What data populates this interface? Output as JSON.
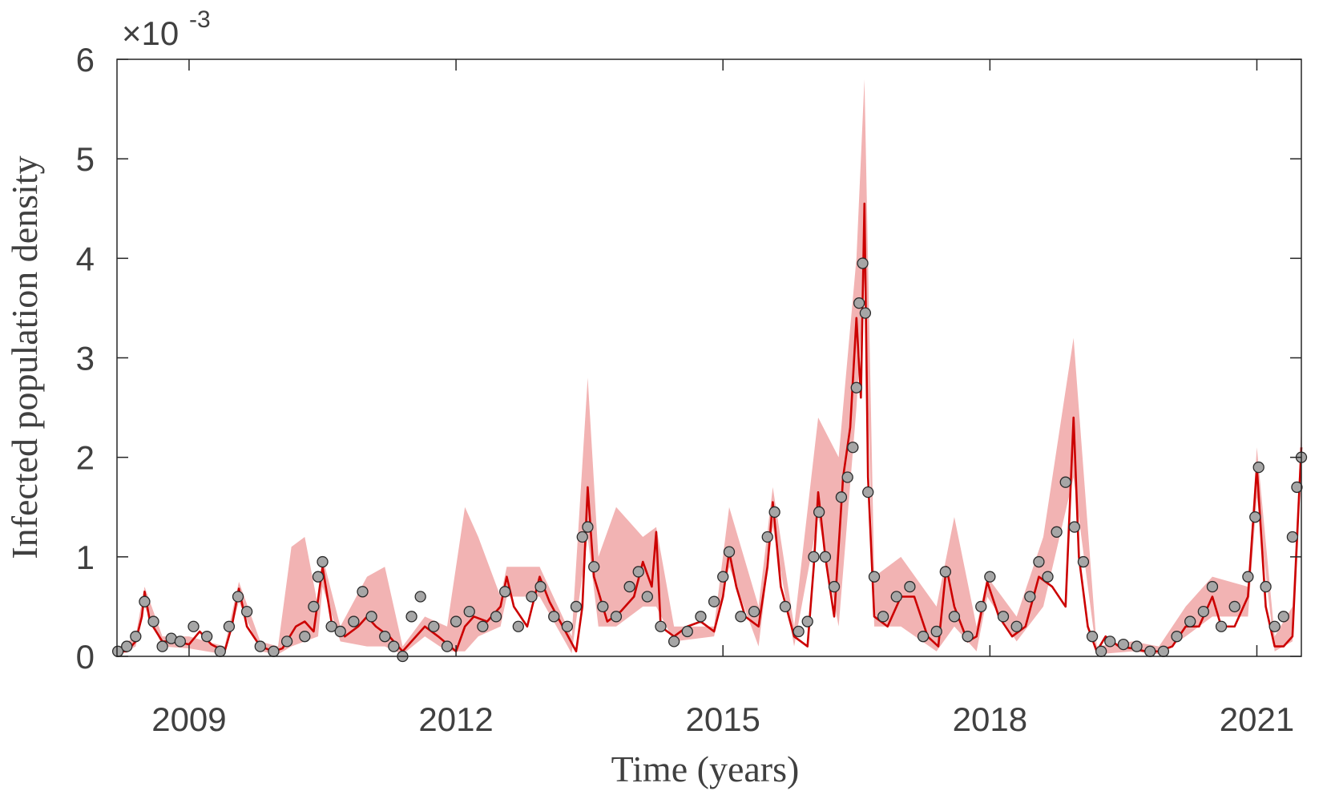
{
  "chart_data": {
    "type": "line",
    "xlabel": "Time (years)",
    "ylabel": "Infected population density",
    "y_multiplier": {
      "base": "×10",
      "exponent": "-3"
    },
    "xlim": [
      2008.19,
      2021.5
    ],
    "xticks": [
      2009,
      2012,
      2015,
      2018,
      2021
    ],
    "ylim": [
      0,
      6
    ],
    "yticks": [
      0,
      1,
      2,
      3,
      4,
      5,
      6
    ],
    "band": {
      "color": "#f2b3b3",
      "x": [
        2008.19,
        2008.4,
        2008.5,
        2008.7,
        2009.0,
        2009.4,
        2009.56,
        2009.8,
        2010.0,
        2010.15,
        2010.3,
        2010.45,
        2010.5,
        2010.7,
        2011.0,
        2011.2,
        2011.4,
        2011.65,
        2011.9,
        2012.1,
        2012.25,
        2012.5,
        2012.57,
        2012.94,
        2013.3,
        2013.48,
        2013.6,
        2013.8,
        2014.1,
        2014.25,
        2014.45,
        2014.9,
        2015.07,
        2015.4,
        2015.56,
        2015.8,
        2016.07,
        2016.3,
        2016.5,
        2016.59,
        2016.7,
        2017.0,
        2017.4,
        2017.6,
        2017.85,
        2017.97,
        2018.3,
        2018.6,
        2018.94,
        2019.2,
        2019.6,
        2019.9,
        2020.2,
        2020.5,
        2020.9,
        2021.0,
        2021.2,
        2021.4,
        2021.5
      ],
      "lower": [
        0.0,
        0.1,
        0.5,
        0.1,
        0.08,
        0.02,
        0.55,
        0.05,
        0.02,
        0.1,
        0.15,
        0.2,
        0.7,
        0.15,
        0.1,
        0.1,
        0.02,
        0.2,
        0.05,
        0.05,
        0.2,
        0.3,
        0.6,
        0.6,
        0.03,
        1.2,
        0.3,
        0.3,
        0.5,
        0.5,
        0.15,
        0.2,
        0.9,
        0.1,
        1.3,
        0.1,
        1.4,
        0.3,
        2.5,
        3.8,
        0.3,
        0.3,
        0.05,
        0.3,
        0.05,
        0.6,
        0.15,
        0.5,
        1.8,
        0.02,
        0.05,
        0.02,
        0.2,
        0.4,
        0.4,
        1.6,
        0.05,
        0.15,
        1.9
      ],
      "upper": [
        0.08,
        0.2,
        0.7,
        0.2,
        0.2,
        0.1,
        0.75,
        0.15,
        0.1,
        1.1,
        1.2,
        0.5,
        1.0,
        0.3,
        0.8,
        0.9,
        0.1,
        0.4,
        0.3,
        1.5,
        1.2,
        0.6,
        0.9,
        0.9,
        0.2,
        2.8,
        1.0,
        1.5,
        1.2,
        1.3,
        0.3,
        0.3,
        1.5,
        0.5,
        1.7,
        0.3,
        2.4,
        2.0,
        4.0,
        5.8,
        0.8,
        1.0,
        0.5,
        1.4,
        0.3,
        0.8,
        0.4,
        1.2,
        3.2,
        0.1,
        0.15,
        0.1,
        0.5,
        0.8,
        0.7,
        2.1,
        0.2,
        0.5,
        2.3
      ]
    },
    "model": {
      "color": "#cc0000",
      "x": [
        2008.19,
        2008.3,
        2008.4,
        2008.47,
        2008.5,
        2008.56,
        2008.7,
        2008.85,
        2009.0,
        2009.12,
        2009.25,
        2009.4,
        2009.48,
        2009.56,
        2009.65,
        2009.8,
        2009.95,
        2010.05,
        2010.2,
        2010.3,
        2010.4,
        2010.5,
        2010.6,
        2010.75,
        2010.9,
        2011.0,
        2011.1,
        2011.25,
        2011.4,
        2011.55,
        2011.65,
        2011.8,
        2012.0,
        2012.1,
        2012.2,
        2012.35,
        2012.5,
        2012.57,
        2012.65,
        2012.8,
        2012.94,
        2013.05,
        2013.2,
        2013.35,
        2013.42,
        2013.48,
        2013.55,
        2013.7,
        2013.85,
        2014.0,
        2014.1,
        2014.2,
        2014.25,
        2014.3,
        2014.45,
        2014.6,
        2014.75,
        2014.9,
        2015.0,
        2015.07,
        2015.15,
        2015.25,
        2015.4,
        2015.5,
        2015.56,
        2015.65,
        2015.8,
        2015.95,
        2016.02,
        2016.07,
        2016.15,
        2016.25,
        2016.35,
        2016.43,
        2016.5,
        2016.55,
        2016.59,
        2016.63,
        2016.7,
        2016.85,
        2017.0,
        2017.15,
        2017.3,
        2017.42,
        2017.51,
        2017.6,
        2017.75,
        2017.85,
        2017.97,
        2018.1,
        2018.25,
        2018.4,
        2018.55,
        2018.7,
        2018.85,
        2018.94,
        2019.0,
        2019.1,
        2019.2,
        2019.3,
        2019.45,
        2019.6,
        2019.75,
        2019.9,
        2020.05,
        2020.2,
        2020.35,
        2020.5,
        2020.6,
        2020.75,
        2020.9,
        2021.0,
        2021.1,
        2021.2,
        2021.3,
        2021.4,
        2021.5
      ],
      "values": [
        0.05,
        0.05,
        0.15,
        0.4,
        0.65,
        0.35,
        0.15,
        0.15,
        0.12,
        0.25,
        0.12,
        0.05,
        0.3,
        0.68,
        0.3,
        0.1,
        0.05,
        0.08,
        0.3,
        0.35,
        0.25,
        0.9,
        0.35,
        0.2,
        0.3,
        0.4,
        0.3,
        0.2,
        0.05,
        0.2,
        0.3,
        0.2,
        0.05,
        0.3,
        0.4,
        0.35,
        0.5,
        0.8,
        0.5,
        0.3,
        0.8,
        0.55,
        0.3,
        0.05,
        0.5,
        1.7,
        0.8,
        0.35,
        0.45,
        0.6,
        0.95,
        0.7,
        1.25,
        0.3,
        0.2,
        0.3,
        0.35,
        0.25,
        0.6,
        1.05,
        0.7,
        0.4,
        0.3,
        0.9,
        1.55,
        0.7,
        0.2,
        0.1,
        0.9,
        1.65,
        1.0,
        0.4,
        1.8,
        2.3,
        3.4,
        2.6,
        4.55,
        1.8,
        0.4,
        0.3,
        0.6,
        0.6,
        0.2,
        0.1,
        0.9,
        0.5,
        0.15,
        0.2,
        0.75,
        0.4,
        0.2,
        0.3,
        0.8,
        0.7,
        0.5,
        2.4,
        1.0,
        0.3,
        0.05,
        0.2,
        0.1,
        0.08,
        0.05,
        0.05,
        0.1,
        0.3,
        0.3,
        0.6,
        0.3,
        0.3,
        0.6,
        1.9,
        0.5,
        0.1,
        0.1,
        0.2,
        2.1
      ]
    },
    "observed": {
      "color": "#a6a6a6",
      "x": [
        2008.2,
        2008.3,
        2008.4,
        2008.5,
        2008.6,
        2008.7,
        2008.8,
        2008.9,
        2009.05,
        2009.2,
        2009.35,
        2009.45,
        2009.55,
        2009.65,
        2009.8,
        2009.95,
        2010.1,
        2010.3,
        2010.4,
        2010.45,
        2010.5,
        2010.6,
        2010.7,
        2010.85,
        2010.95,
        2011.05,
        2011.2,
        2011.3,
        2011.4,
        2011.5,
        2011.6,
        2011.75,
        2011.9,
        2012.0,
        2012.15,
        2012.3,
        2012.45,
        2012.55,
        2012.7,
        2012.85,
        2012.95,
        2013.1,
        2013.25,
        2013.35,
        2013.42,
        2013.48,
        2013.55,
        2013.65,
        2013.8,
        2013.95,
        2014.05,
        2014.15,
        2014.3,
        2014.45,
        2014.6,
        2014.75,
        2014.9,
        2015.0,
        2015.07,
        2015.2,
        2015.35,
        2015.5,
        2015.58,
        2015.7,
        2015.85,
        2015.95,
        2016.02,
        2016.08,
        2016.15,
        2016.25,
        2016.33,
        2016.4,
        2016.46,
        2016.5,
        2016.53,
        2016.57,
        2016.6,
        2016.63,
        2016.7,
        2016.8,
        2016.95,
        2017.1,
        2017.25,
        2017.4,
        2017.5,
        2017.6,
        2017.75,
        2017.9,
        2018.0,
        2018.15,
        2018.3,
        2018.45,
        2018.55,
        2018.65,
        2018.75,
        2018.85,
        2018.95,
        2019.05,
        2019.15,
        2019.25,
        2019.35,
        2019.5,
        2019.65,
        2019.8,
        2019.95,
        2020.1,
        2020.25,
        2020.4,
        2020.5,
        2020.6,
        2020.75,
        2020.9,
        2020.98,
        2021.02,
        2021.1,
        2021.2,
        2021.3,
        2021.4,
        2021.45,
        2021.5
      ],
      "values": [
        0.05,
        0.1,
        0.2,
        0.55,
        0.35,
        0.1,
        0.18,
        0.15,
        0.3,
        0.2,
        0.05,
        0.3,
        0.6,
        0.45,
        0.1,
        0.05,
        0.15,
        0.2,
        0.5,
        0.8,
        0.95,
        0.3,
        0.25,
        0.35,
        0.65,
        0.4,
        0.2,
        0.1,
        0.0,
        0.4,
        0.6,
        0.3,
        0.1,
        0.35,
        0.45,
        0.3,
        0.4,
        0.65,
        0.3,
        0.6,
        0.7,
        0.4,
        0.3,
        0.5,
        1.2,
        1.3,
        0.9,
        0.5,
        0.4,
        0.7,
        0.85,
        0.6,
        0.3,
        0.15,
        0.25,
        0.4,
        0.55,
        0.8,
        1.05,
        0.4,
        0.45,
        1.2,
        1.45,
        0.5,
        0.25,
        0.35,
        1.0,
        1.45,
        1.0,
        0.7,
        1.6,
        1.8,
        2.1,
        2.7,
        3.55,
        3.95,
        3.45,
        1.65,
        0.8,
        0.4,
        0.6,
        0.7,
        0.2,
        0.25,
        0.85,
        0.4,
        0.2,
        0.5,
        0.8,
        0.4,
        0.3,
        0.6,
        0.95,
        0.8,
        1.25,
        1.75,
        1.3,
        0.95,
        0.2,
        0.05,
        0.15,
        0.12,
        0.1,
        0.05,
        0.05,
        0.2,
        0.35,
        0.45,
        0.7,
        0.3,
        0.5,
        0.8,
        1.4,
        1.9,
        0.7,
        0.3,
        0.4,
        1.2,
        1.7,
        2.0
      ]
    }
  }
}
